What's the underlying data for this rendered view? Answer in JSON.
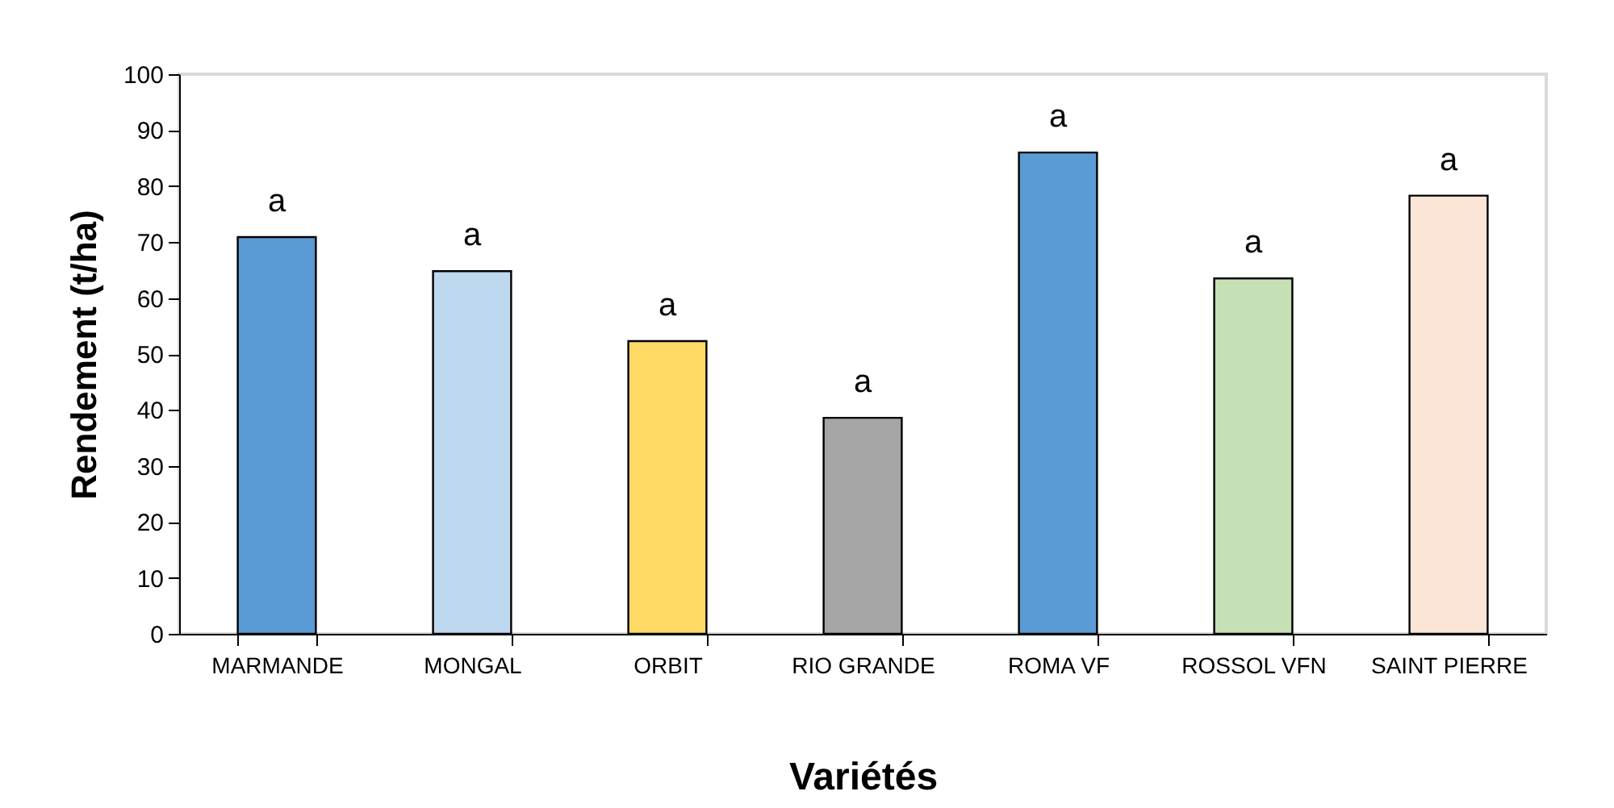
{
  "chart_data": {
    "type": "bar",
    "xlabel": "Variétés",
    "ylabel": "Rendement (t/ha)",
    "categories": [
      "MARMANDE",
      "MONGAL",
      "ORBIT",
      "RIO GRANDE",
      "ROMA VF",
      "ROSSOL VFN",
      "SAINT PIERRE"
    ],
    "values": [
      70.9,
      64.8,
      52.3,
      38.6,
      86,
      63.5,
      78.3
    ],
    "colors": [
      "#5b9bd5",
      "#bdd7ee",
      "#ffd966",
      "#a5a5a5",
      "#5b9bd5",
      "#c5e0b4",
      "#fbe5d6"
    ],
    "value_labels": [
      "a",
      "a",
      "a",
      "a",
      "a",
      "a",
      "a"
    ],
    "ylim": [
      0,
      100
    ],
    "yticks": [
      0,
      10,
      20,
      30,
      40,
      50,
      60,
      70,
      80,
      90,
      100
    ],
    "grid": false,
    "legend": false
  }
}
